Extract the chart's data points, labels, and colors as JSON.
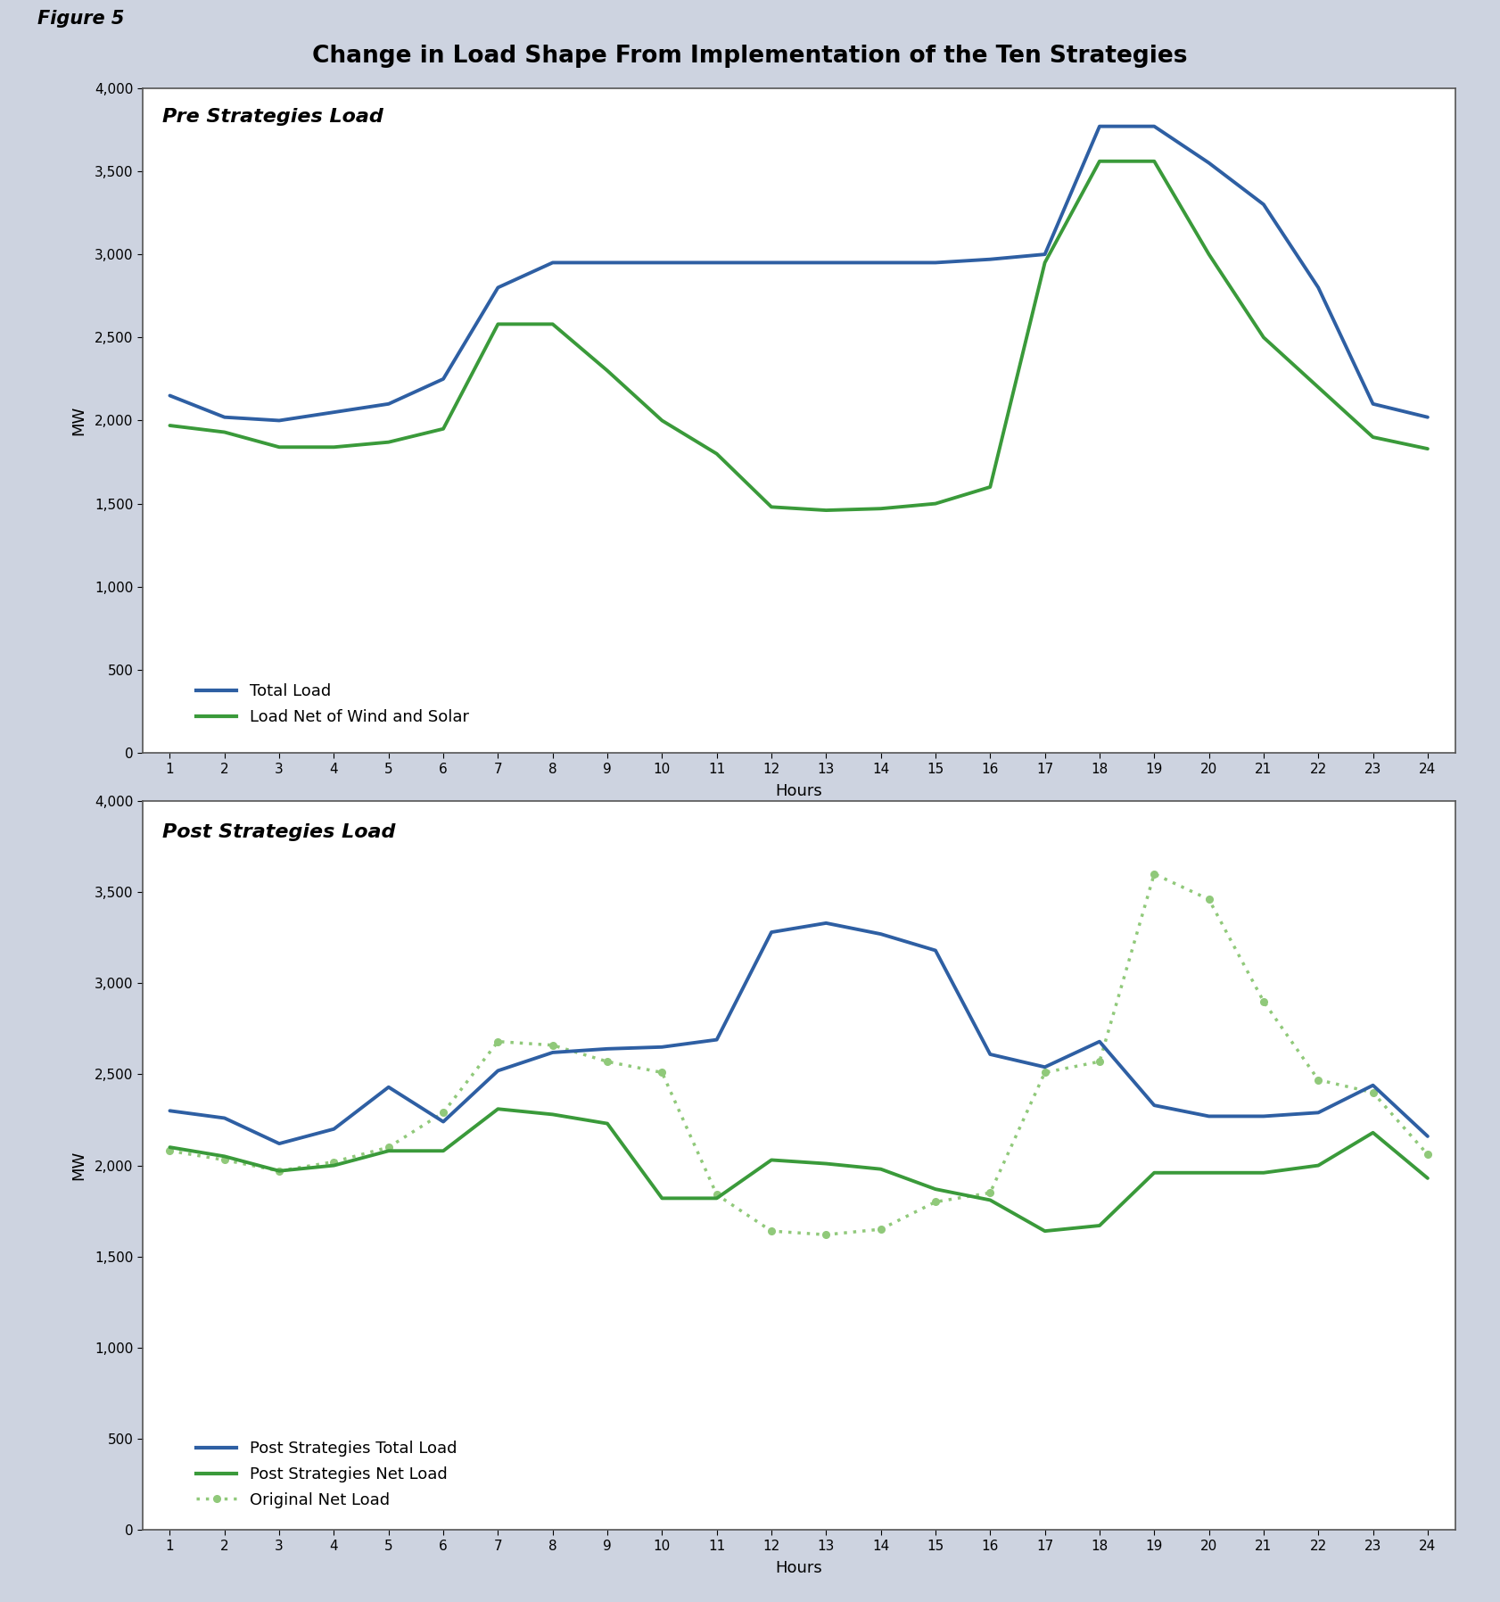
{
  "title": "Change in Load Shape From Implementation of the Ten Strategies",
  "figure_label": "Figure 5",
  "hours": [
    1,
    2,
    3,
    4,
    5,
    6,
    7,
    8,
    9,
    10,
    11,
    12,
    13,
    14,
    15,
    16,
    17,
    18,
    19,
    20,
    21,
    22,
    23,
    24
  ],
  "pre_title": "Pre Strategies Load",
  "pre_total_load": [
    2150,
    2020,
    2000,
    2050,
    2100,
    2250,
    2800,
    2950,
    2950,
    2950,
    2950,
    2950,
    2950,
    2950,
    2950,
    2970,
    3000,
    3770,
    3770,
    3550,
    3300,
    2800,
    2100,
    2020
  ],
  "pre_net_load": [
    1970,
    1930,
    1840,
    1840,
    1870,
    1950,
    2580,
    2580,
    2300,
    2000,
    1800,
    1480,
    1460,
    1470,
    1500,
    1600,
    2950,
    3560,
    3560,
    3000,
    2500,
    2200,
    1900,
    1830
  ],
  "post_title": "Post Strategies Load",
  "post_total_load": [
    2300,
    2260,
    2120,
    2200,
    2430,
    2240,
    2520,
    2620,
    2640,
    2650,
    2690,
    3280,
    3330,
    3270,
    3180,
    2610,
    2540,
    2680,
    2330,
    2270,
    2270,
    2290,
    2440,
    2160
  ],
  "post_net_load": [
    2100,
    2050,
    1970,
    2000,
    2080,
    2080,
    2310,
    2280,
    2230,
    1820,
    1820,
    2030,
    2010,
    1980,
    1870,
    1810,
    1640,
    1670,
    1960,
    1960,
    1960,
    2000,
    2180,
    1930
  ],
  "original_net_load": [
    2080,
    2030,
    1970,
    2020,
    2100,
    2290,
    2680,
    2660,
    2570,
    2510,
    1840,
    1640,
    1620,
    1650,
    1800,
    1850,
    2510,
    2570,
    3600,
    3460,
    2900,
    2470,
    2400,
    2060
  ],
  "blue_color": "#2E5FA3",
  "green_color": "#3A9A3A",
  "green_dot_color": "#90C97A",
  "bg_color": "#CDD3E0",
  "plot_bg": "#FFFFFF",
  "line_width": 2.8,
  "title_fontsize": 19,
  "axis_label_fontsize": 13,
  "tick_fontsize": 11,
  "legend_fontsize": 13,
  "subplot_title_fontsize": 16
}
